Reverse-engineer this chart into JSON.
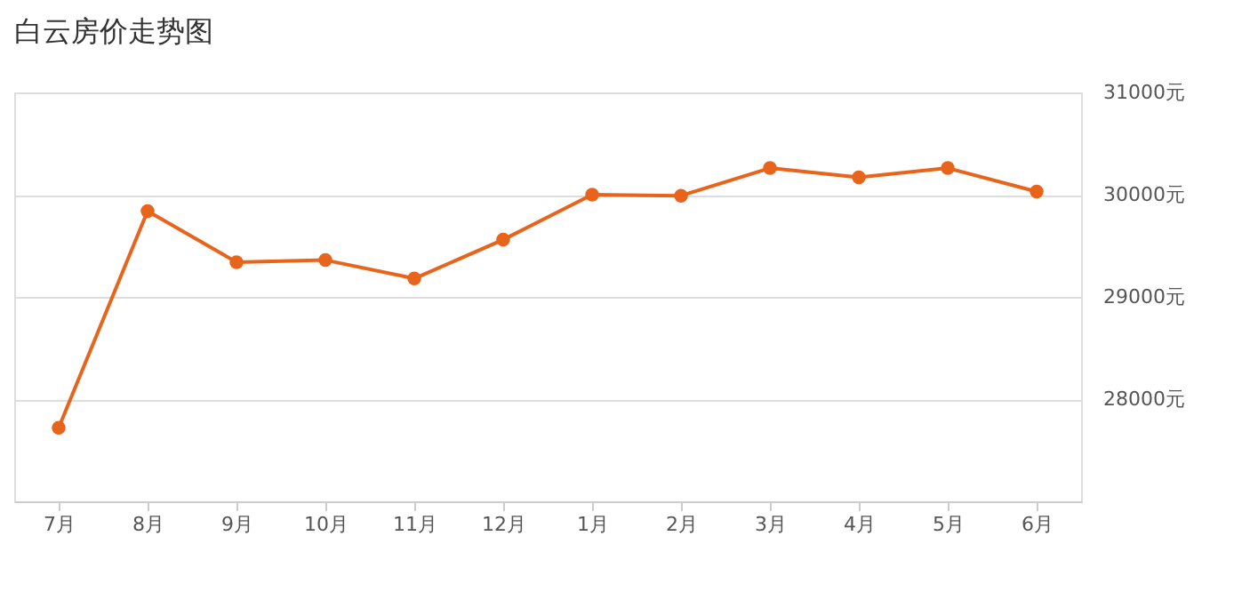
{
  "chart_data": {
    "type": "line",
    "title": "白云房价走势图",
    "categories": [
      "7月",
      "8月",
      "9月",
      "10月",
      "11月",
      "12月",
      "1月",
      "2月",
      "3月",
      "4月",
      "5月",
      "6月"
    ],
    "series": [
      {
        "color": "#e8641b",
        "values": [
          27720,
          29840,
          29340,
          29360,
          29180,
          29560,
          30000,
          29990,
          30260,
          30170,
          30260,
          30030
        ]
      }
    ],
    "ylim": [
      27000,
      31000
    ],
    "yticks": [
      {
        "value": 28000,
        "label": "28000元"
      },
      {
        "value": 29000,
        "label": "29000元"
      },
      {
        "value": 30000,
        "label": "30000元"
      },
      {
        "value": 31000,
        "label": "31000元"
      }
    ],
    "grid": "y",
    "marker": "circle",
    "line_style": "solid"
  }
}
